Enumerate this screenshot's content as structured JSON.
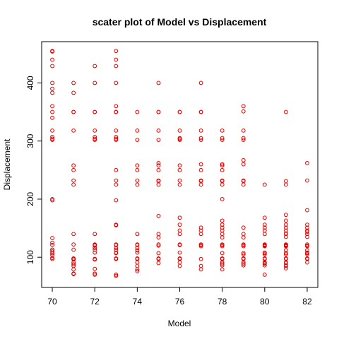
{
  "chart_data": {
    "type": "scatter",
    "title": "scater plot of Model vs Displacement",
    "xlabel": "Model",
    "ylabel": "Displacement",
    "xlim": [
      69.5,
      82.5
    ],
    "ylim": [
      48,
      471
    ],
    "x_ticks": [
      70,
      72,
      74,
      76,
      78,
      80,
      82
    ],
    "y_ticks": [
      100,
      200,
      300,
      400
    ],
    "grid": false,
    "marker": "open-circle",
    "point_color": "#dd0000",
    "series": [
      {
        "x": [
          70,
          70,
          70,
          70,
          70,
          70,
          70,
          70,
          70,
          70,
          70,
          70,
          70,
          70,
          70,
          70,
          70,
          70,
          70,
          70,
          70,
          70,
          70,
          70,
          70,
          70,
          71,
          71,
          71,
          71,
          71,
          71,
          71,
          71,
          71,
          71,
          71,
          71,
          71,
          71,
          71,
          71,
          71,
          71,
          71,
          71,
          71,
          72,
          72,
          72,
          72,
          72,
          72,
          72,
          72,
          72,
          72,
          72,
          72,
          72,
          72,
          72,
          72,
          72,
          72,
          72,
          72,
          72,
          73,
          73,
          73,
          73,
          73,
          73,
          73,
          73,
          73,
          73,
          73,
          73,
          73,
          73,
          73,
          73,
          73,
          73,
          73,
          73,
          73,
          73,
          73,
          73,
          73,
          73,
          73,
          73,
          74,
          74,
          74,
          74,
          74,
          74,
          74,
          74,
          74,
          74,
          74,
          74,
          74,
          74,
          74,
          74,
          74,
          74,
          74,
          75,
          75,
          75,
          75,
          75,
          75,
          75,
          75,
          75,
          75,
          75,
          75,
          75,
          75,
          75,
          75,
          75,
          75,
          75,
          75,
          76,
          76,
          76,
          76,
          76,
          76,
          76,
          76,
          76,
          76,
          76,
          76,
          76,
          76,
          76,
          76,
          76,
          76,
          76,
          76,
          76,
          77,
          77,
          77,
          77,
          77,
          77,
          77,
          77,
          77,
          77,
          77,
          77,
          77,
          77,
          77,
          77,
          77,
          77,
          77,
          77,
          78,
          78,
          78,
          78,
          78,
          78,
          78,
          78,
          78,
          78,
          78,
          78,
          78,
          78,
          78,
          78,
          78,
          78,
          78,
          78,
          78,
          78,
          78,
          78,
          78,
          78,
          79,
          79,
          79,
          79,
          79,
          79,
          79,
          79,
          79,
          79,
          79,
          79,
          79,
          79,
          79,
          79,
          79,
          79,
          79,
          79,
          79,
          79,
          79,
          80,
          80,
          80,
          80,
          80,
          80,
          80,
          80,
          80,
          80,
          80,
          80,
          80,
          80,
          80,
          80,
          80,
          80,
          80,
          80,
          81,
          81,
          81,
          81,
          81,
          81,
          81,
          81,
          81,
          81,
          81,
          81,
          81,
          81,
          81,
          81,
          81,
          81,
          81,
          81,
          81,
          81,
          81,
          81,
          81,
          82,
          82,
          82,
          82,
          82,
          82,
          82,
          82,
          82,
          82,
          82,
          82,
          82,
          82,
          82,
          82,
          82,
          82,
          82
        ],
        "y": [
          455,
          454,
          440,
          429,
          400,
          390,
          383,
          360,
          350,
          340,
          318,
          307,
          304,
          302,
          200,
          198,
          133,
          121,
          113,
          110,
          107,
          104,
          99,
          97,
          113,
          125,
          400,
          383,
          350,
          350,
          318,
          258,
          250,
          232,
          225,
          140,
          122,
          98,
          97,
          91,
          85,
          79,
          72,
          71,
          96,
          113,
          88,
          429,
          400,
          350,
          350,
          318,
          307,
          304,
          302,
          140,
          122,
          121,
          116,
          113,
          108,
          97,
          97,
          96,
          80,
          72,
          70,
          120,
          455,
          440,
          429,
          400,
          360,
          350,
          350,
          350,
          318,
          307,
          304,
          302,
          250,
          232,
          225,
          198,
          156,
          155,
          122,
          121,
          116,
          113,
          108,
          107,
          98,
          97,
          70,
          68,
          350,
          318,
          302,
          258,
          250,
          232,
          225,
          140,
          122,
          121,
          116,
          112,
          108,
          98,
          97,
          91,
          85,
          79,
          76,
          400,
          350,
          350,
          318,
          302,
          262,
          258,
          250,
          232,
          231,
          225,
          171,
          140,
          134,
          122,
          120,
          107,
          98,
          97,
          90,
          350,
          350,
          318,
          305,
          304,
          302,
          258,
          250,
          232,
          225,
          168,
          156,
          146,
          140,
          122,
          121,
          108,
          97,
          98,
          91,
          85,
          400,
          350,
          350,
          318,
          305,
          302,
          260,
          250,
          232,
          231,
          225,
          151,
          146,
          140,
          122,
          121,
          119,
          97,
          85,
          79,
          318,
          305,
          302,
          260,
          258,
          250,
          232,
          231,
          225,
          200,
          163,
          156,
          151,
          146,
          140,
          134,
          122,
          121,
          119,
          107,
          98,
          97,
          91,
          89,
          86,
          79,
          360,
          351,
          318,
          305,
          302,
          267,
          260,
          232,
          231,
          225,
          151,
          140,
          134,
          122,
          121,
          119,
          107,
          105,
          98,
          97,
          91,
          89,
          86,
          225,
          168,
          156,
          151,
          146,
          140,
          122,
          121,
          120,
          119,
          108,
          107,
          105,
          98,
          97,
          91,
          90,
          89,
          86,
          70,
          350,
          231,
          225,
          173,
          163,
          156,
          151,
          146,
          141,
          140,
          135,
          122,
          121,
          120,
          119,
          112,
          107,
          105,
          98,
          97,
          91,
          90,
          86,
          85,
          81,
          262,
          232,
          181,
          156,
          151,
          146,
          144,
          140,
          135,
          122,
          120,
          119,
          112,
          108,
          107,
          105,
          98,
          97,
          91
        ]
      }
    ]
  }
}
